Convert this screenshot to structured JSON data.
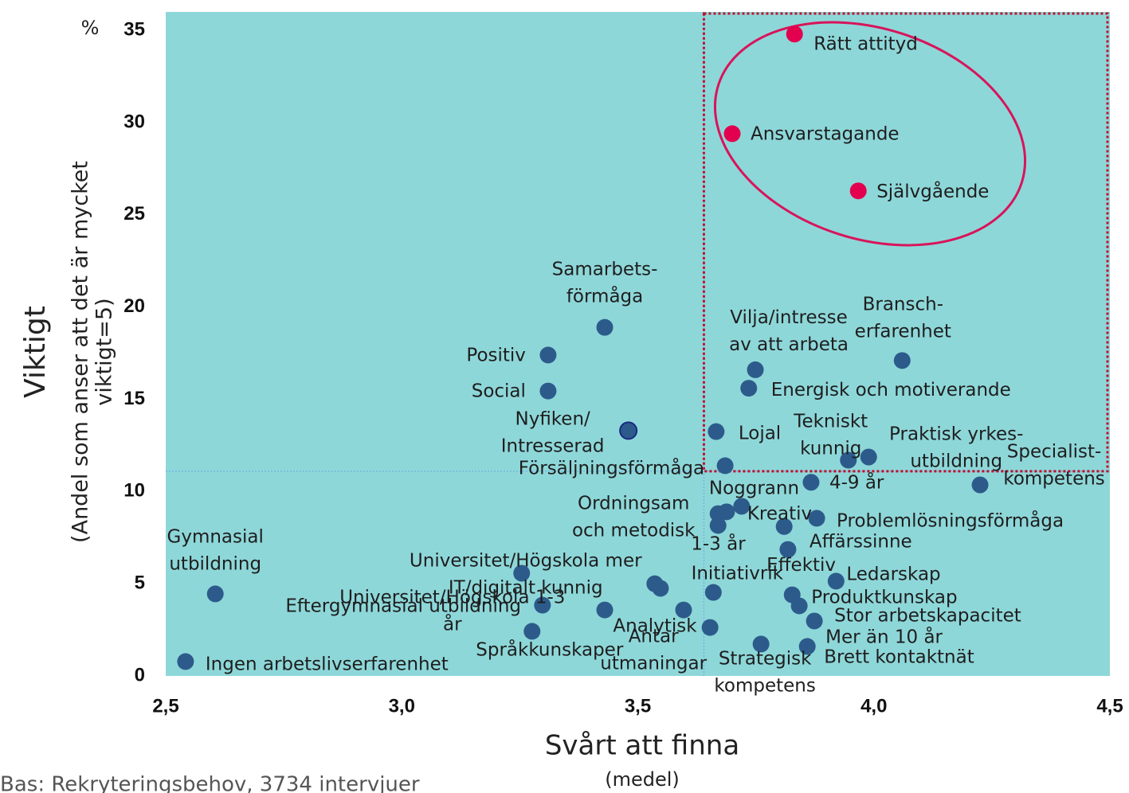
{
  "chart_data": {
    "type": "scatter",
    "y_unit": "%",
    "y_title": "Viktigt",
    "y_subtitle": [
      "(Andel som anser att det är mycket",
      "viktigt=5)"
    ],
    "x_title": "Svårt att finna",
    "x_subtitle": "(medel)",
    "footnote": "Bas: Rekryteringsbehov, 3734 intervjuer",
    "xlim": [
      2.5,
      4.5
    ],
    "ylim": [
      0,
      36
    ],
    "xticks": [
      {
        "value": 2.5,
        "label": "2,5"
      },
      {
        "value": 3.0,
        "label": "3,0"
      },
      {
        "value": 3.5,
        "label": "3,5"
      },
      {
        "value": 4.0,
        "label": "4,0"
      },
      {
        "value": 4.5,
        "label": "4,5"
      }
    ],
    "yticks": [
      0,
      5,
      10,
      15,
      20,
      25,
      30,
      35
    ],
    "xline": 3.64,
    "yline": 11.1,
    "background": "#8ed7d9",
    "points": [
      {
        "label": [
          "Rätt attityd"
        ],
        "x": 3.832,
        "y": 34.8,
        "color": "#e3004f"
      },
      {
        "label": [
          "Ansvarstagande"
        ],
        "x": 3.7,
        "y": 29.4,
        "color": "#e3004f"
      },
      {
        "label": [
          "Självgående"
        ],
        "x": 3.967,
        "y": 26.3,
        "color": "#e3004f"
      },
      {
        "label": [
          "Samarbets-",
          "förmåga"
        ],
        "x": 3.43,
        "y": 18.9,
        "color": "#2c5b8b"
      },
      {
        "label": [
          "Positiv"
        ],
        "x": 3.31,
        "y": 17.4,
        "color": "#2c5b8b"
      },
      {
        "label": [
          "Social"
        ],
        "x": 3.31,
        "y": 15.45,
        "color": "#2c5b8b"
      },
      {
        "label": [
          "Nyfiken/",
          "Intresserad"
        ],
        "x": 3.48,
        "y": 13.3,
        "color": "#2c5b8b"
      },
      {
        "label": [
          "Vilja/intresse",
          "av att arbeta"
        ],
        "x": 3.749,
        "y": 16.6,
        "color": "#2c5b8b"
      },
      {
        "label": [
          "Energisk och motiverande"
        ],
        "x": 3.735,
        "y": 15.6,
        "color": "#2c5b8b"
      },
      {
        "label": [
          "Bransch-",
          "erfarenhet"
        ],
        "x": 4.06,
        "y": 17.1,
        "color": "#2c5b8b"
      },
      {
        "label": [
          "Lojal"
        ],
        "x": 3.666,
        "y": 13.25,
        "color": "#2c5b8b"
      },
      {
        "label": [
          "Tekniskt",
          "kunnig"
        ],
        "x": 3.946,
        "y": 11.7,
        "color": "#2c5b8b"
      },
      {
        "label": [
          "Praktisk yrkes-",
          "utbildning"
        ],
        "x": 3.989,
        "y": 11.87,
        "color": "#2c5b8b"
      },
      {
        "label": [
          "Försäljningsförmåga"
        ],
        "x": 3.685,
        "y": 11.4,
        "color": "#2c5b8b"
      },
      {
        "label": [
          "Specialist-",
          "kompetens"
        ],
        "x": 4.225,
        "y": 10.36,
        "color": "#2c5b8b"
      },
      {
        "label": [
          "4-9 år"
        ],
        "x": 3.867,
        "y": 10.5,
        "color": "#2c5b8b"
      },
      {
        "label": [
          "Noggrann"
        ],
        "x": 3.688,
        "y": 8.9,
        "color": "#2c5b8b"
      },
      {
        "label": [
          "Kreativ"
        ],
        "x": 3.72,
        "y": 9.2,
        "color": "#2c5b8b"
      },
      {
        "label": [
          "Ordningsam",
          "och metodisk"
        ],
        "x": 3.67,
        "y": 8.8,
        "color": "#2c5b8b"
      },
      {
        "label": [
          "1-3 år"
        ],
        "x": 3.67,
        "y": 8.16,
        "color": "#2c5b8b"
      },
      {
        "label": [
          "Problemlösningsförmåga"
        ],
        "x": 3.879,
        "y": 8.55,
        "color": "#2c5b8b"
      },
      {
        "label": [
          "Effektiv"
        ],
        "x": 3.81,
        "y": 8.1,
        "color": "#2c5b8b"
      },
      {
        "label": [
          "Affärssinne"
        ],
        "x": 3.818,
        "y": 6.86,
        "color": "#2c5b8b"
      },
      {
        "label": [
          "Ledarskap"
        ],
        "x": 3.92,
        "y": 5.14,
        "color": "#2c5b8b"
      },
      {
        "label": [
          "Produktkunskap"
        ],
        "x": 3.827,
        "y": 4.4,
        "color": "#2c5b8b"
      },
      {
        "label": [
          "Mer än 10 år"
        ],
        "x": 3.842,
        "y": 3.8,
        "color": "#2c5b8b"
      },
      {
        "label": [
          "Stor arbetskapacitet"
        ],
        "x": 3.874,
        "y": 2.98,
        "color": "#2c5b8b"
      },
      {
        "label": [
          "Brett kontaktnät"
        ],
        "x": 3.859,
        "y": 1.6,
        "color": "#2c5b8b"
      },
      {
        "label": [
          "Strategisk",
          "kompetens"
        ],
        "x": 3.761,
        "y": 1.73,
        "color": "#2c5b8b"
      },
      {
        "label": [
          "Initiativrik"
        ],
        "x": 3.66,
        "y": 4.53,
        "color": "#2c5b8b"
      },
      {
        "label": [
          "Analytisk"
        ],
        "x": 3.597,
        "y": 3.58,
        "color": "#2c5b8b"
      },
      {
        "label": [
          "Antar",
          "utmaningar"
        ],
        "x": 3.653,
        "y": 2.63,
        "color": "#2c5b8b"
      },
      {
        "label": null,
        "x": 3.536,
        "y": 5.0,
        "color": "#2c5b8b"
      },
      {
        "label": null,
        "x": 3.548,
        "y": 4.75,
        "color": "#2c5b8b"
      },
      {
        "label": [
          "Universitet/Högskola mer",
          "IT/digitalt kunnig"
        ],
        "x": 3.254,
        "y": 5.57,
        "color": "#2c5b8b"
      },
      {
        "label": [
          "Universitet/Högskola 1-3",
          "år"
        ],
        "x": 3.298,
        "y": 3.84,
        "color": "#2c5b8b"
      },
      {
        "label": [
          "Eftergymnasial utbildning"
        ],
        "x": 3.43,
        "y": 3.58,
        "color": "#2c5b8b"
      },
      {
        "label": [
          "Språkkunskaper"
        ],
        "x": 3.276,
        "y": 2.42,
        "color": "#2c5b8b"
      },
      {
        "label": [
          "Gymnasial",
          "utbildning"
        ],
        "x": 2.605,
        "y": 4.45,
        "color": "#2c5b8b"
      },
      {
        "label": [
          "Ingen arbetslivserfarenhet"
        ],
        "x": 2.542,
        "y": 0.78,
        "color": "#2c5b8b"
      }
    ]
  }
}
